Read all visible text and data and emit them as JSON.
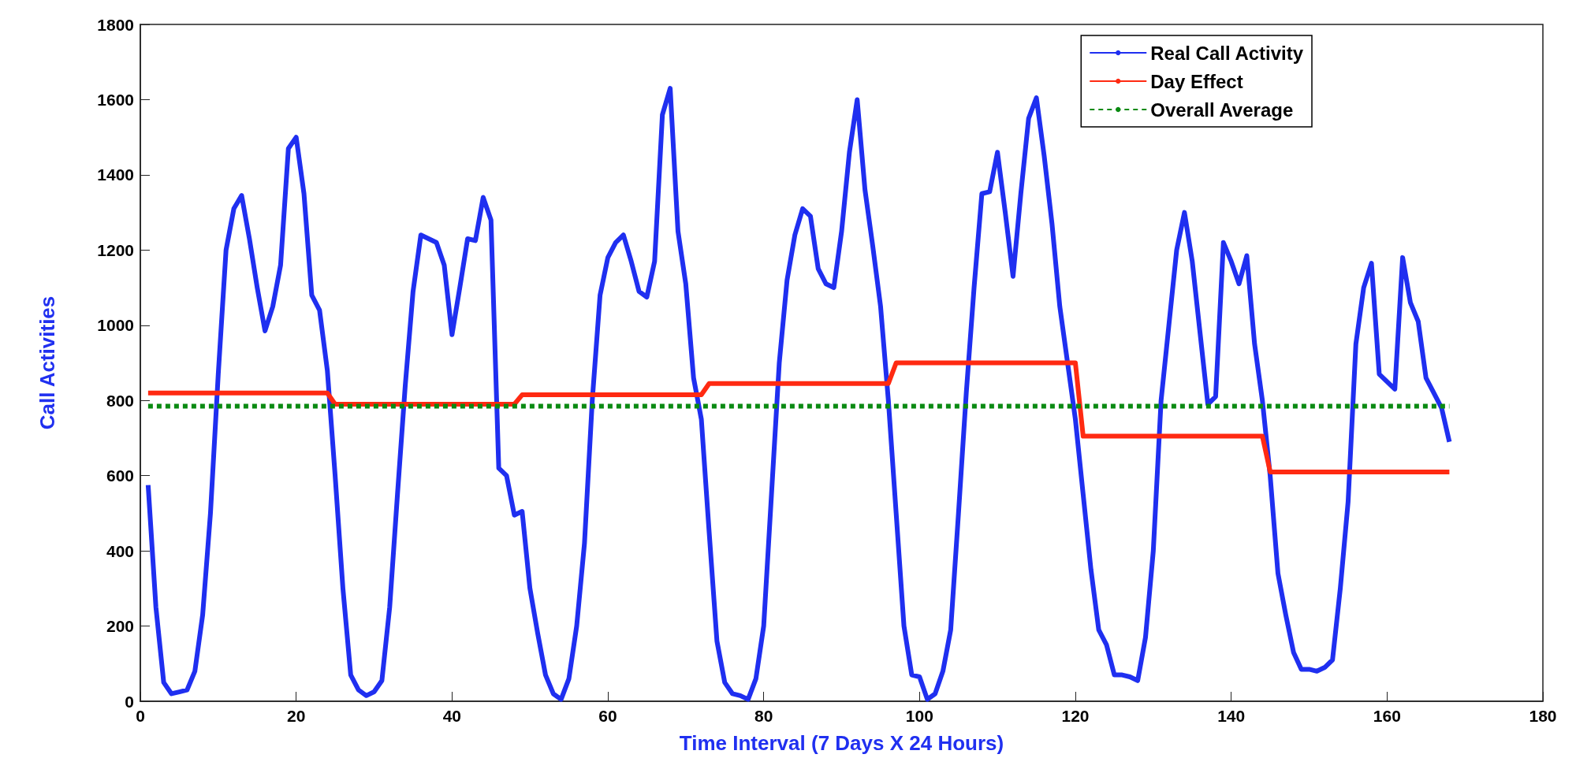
{
  "chart_data": {
    "type": "line",
    "xlabel": "Time Interval (7 Days X 24 Hours)",
    "ylabel": "Call Activities",
    "xlim": [
      0,
      180
    ],
    "xticks": [
      0,
      20,
      40,
      60,
      80,
      100,
      120,
      140,
      160,
      180
    ],
    "ylim": [
      0,
      1800
    ],
    "yticks": [
      0,
      200,
      400,
      600,
      800,
      1000,
      1200,
      1400,
      1600,
      1800
    ],
    "grid": false,
    "legend": "top right",
    "marker": "none",
    "series": [
      {
        "name": "Real Call Activity",
        "color": "#1f2ff0",
        "line_style": "solid",
        "x": [
          1,
          2,
          3,
          4,
          5,
          6,
          7,
          8,
          9,
          10,
          11,
          12,
          13,
          14,
          15,
          16,
          17,
          18,
          19,
          20,
          21,
          22,
          23,
          24,
          25,
          26,
          27,
          28,
          29,
          30,
          31,
          32,
          33,
          34,
          35,
          36,
          37,
          38,
          39,
          40,
          41,
          42,
          43,
          44,
          45,
          46,
          47,
          48,
          49,
          50,
          51,
          52,
          53,
          54,
          55,
          56,
          57,
          58,
          59,
          60,
          61,
          62,
          63,
          64,
          65,
          66,
          67,
          68,
          69,
          70,
          71,
          72,
          73,
          74,
          75,
          76,
          77,
          78,
          79,
          80,
          81,
          82,
          83,
          84,
          85,
          86,
          87,
          88,
          89,
          90,
          91,
          92,
          93,
          94,
          95,
          96,
          97,
          98,
          99,
          100,
          101,
          102,
          103,
          104,
          105,
          106,
          107,
          108,
          109,
          110,
          111,
          112,
          113,
          114,
          115,
          116,
          117,
          118,
          119,
          120,
          121,
          122,
          123,
          124,
          125,
          126,
          127,
          128,
          129,
          130,
          131,
          132,
          133,
          134,
          135,
          136,
          137,
          138,
          139,
          140,
          141,
          142,
          143,
          144,
          145,
          146,
          147,
          148,
          149,
          150,
          151,
          152,
          153,
          154,
          155,
          156,
          157,
          158,
          159,
          160,
          161,
          162,
          163,
          164,
          165,
          166,
          167,
          168
        ],
        "values": [
          575,
          250,
          50,
          20,
          25,
          30,
          80,
          230,
          500,
          870,
          1200,
          1310,
          1345,
          1230,
          1100,
          985,
          1050,
          1160,
          1470,
          1500,
          1350,
          1080,
          1040,
          880,
          600,
          300,
          70,
          30,
          15,
          25,
          55,
          250,
          550,
          840,
          1090,
          1240,
          1230,
          1220,
          1160,
          975,
          1100,
          1230,
          1225,
          1340,
          1280,
          620,
          600,
          495,
          505,
          300,
          180,
          70,
          20,
          5,
          60,
          200,
          420,
          800,
          1080,
          1180,
          1220,
          1240,
          1170,
          1090,
          1075,
          1170,
          1560,
          1630,
          1250,
          1110,
          860,
          750,
          450,
          160,
          50,
          20,
          15,
          5,
          60,
          200,
          550,
          900,
          1120,
          1240,
          1310,
          1290,
          1150,
          1110,
          1100,
          1250,
          1460,
          1600,
          1360,
          1210,
          1050,
          800,
          500,
          200,
          70,
          65,
          5,
          20,
          80,
          190,
          500,
          820,
          1100,
          1350,
          1355,
          1460,
          1300,
          1130,
          1350,
          1550,
          1605,
          1450,
          1270,
          1050,
          900,
          750,
          550,
          350,
          190,
          150,
          70,
          70,
          65,
          55,
          170,
          400,
          800,
          1000,
          1200,
          1300,
          1170,
          980,
          790,
          810,
          1220,
          1170,
          1110,
          1185,
          950,
          800,
          600,
          340,
          230,
          130,
          85,
          85,
          80,
          90,
          110,
          300,
          530,
          950,
          1100,
          1165,
          870,
          850,
          830,
          1180,
          1060,
          1010,
          860,
          820,
          780,
          690
        ]
      },
      {
        "name": "Day Effect",
        "color": "#ff2a12",
        "line_style": "solid",
        "x": [
          1,
          24,
          25,
          48,
          49,
          72,
          73,
          96,
          97,
          120,
          121,
          144,
          145,
          168
        ],
        "values": [
          820,
          820,
          790,
          790,
          815,
          815,
          845,
          845,
          900,
          900,
          705,
          705,
          610,
          610
        ]
      },
      {
        "name": "Overall Average",
        "color": "#0a8a12",
        "line_style": "dashed",
        "x": [
          1,
          168
        ],
        "values": [
          785,
          785
        ]
      }
    ]
  }
}
